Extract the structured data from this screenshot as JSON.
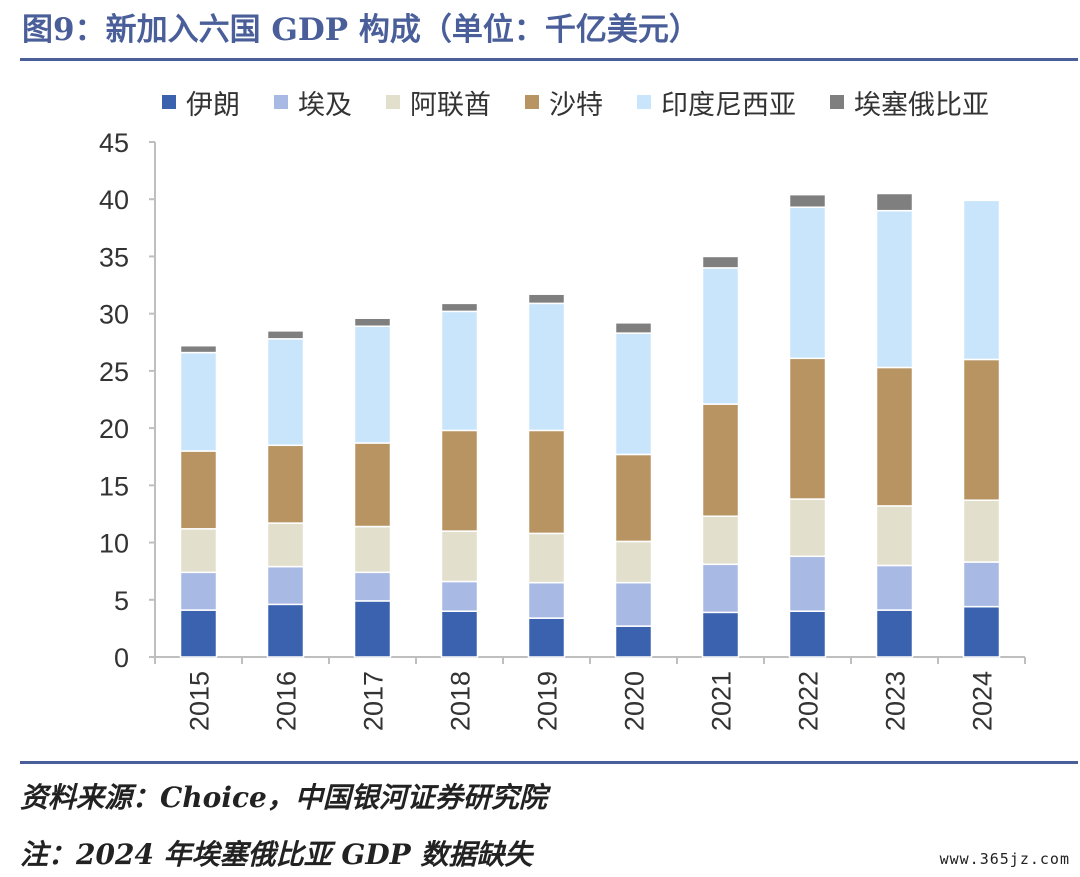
{
  "title": "图9：新加入六国 GDP 构成（单位：千亿美元）",
  "source": "资料来源：Choice，中国银河证券研究院",
  "note": "注：2024 年埃塞俄比亚 GDP 数据缺失",
  "watermark": "www.365jz.com",
  "colors": {
    "伊朗": "#3a62ae",
    "埃及": "#a8b9e3",
    "阿联酋": "#e2dfcd",
    "沙特": "#b89462",
    "印度尼西亚": "#c8e5fb",
    "埃塞俄比亚": "#7f7f7f"
  },
  "chart_data": {
    "type": "bar",
    "stacked": true,
    "categories": [
      "2015",
      "2016",
      "2017",
      "2018",
      "2019",
      "2020",
      "2021",
      "2022",
      "2023",
      "2024"
    ],
    "series": [
      {
        "name": "伊朗",
        "color": "#3a62ae",
        "values": [
          4.1,
          4.6,
          4.9,
          4.0,
          3.4,
          2.7,
          3.9,
          4.0,
          4.1,
          4.4
        ]
      },
      {
        "name": "埃及",
        "color": "#a8b9e3",
        "values": [
          3.3,
          3.3,
          2.5,
          2.6,
          3.1,
          3.8,
          4.2,
          4.8,
          3.9,
          3.9
        ]
      },
      {
        "name": "阿联酋",
        "color": "#e2dfcd",
        "values": [
          3.8,
          3.8,
          4.0,
          4.4,
          4.3,
          3.6,
          4.2,
          5.0,
          5.2,
          5.4
        ]
      },
      {
        "name": "沙特",
        "color": "#b89462",
        "values": [
          6.8,
          6.8,
          7.3,
          8.8,
          9.0,
          7.6,
          9.8,
          12.3,
          12.1,
          12.3
        ]
      },
      {
        "name": "印度尼西亚",
        "color": "#c8e5fb",
        "values": [
          8.6,
          9.3,
          10.2,
          10.4,
          11.1,
          10.6,
          11.9,
          13.2,
          13.7,
          13.9
        ]
      },
      {
        "name": "埃塞俄比亚",
        "color": "#7f7f7f",
        "values": [
          0.6,
          0.7,
          0.7,
          0.7,
          0.8,
          0.9,
          1.0,
          1.1,
          1.5,
          0
        ]
      }
    ],
    "yticks": [
      "0",
      "5",
      "10",
      "15",
      "20",
      "25",
      "30",
      "35",
      "40",
      "45"
    ],
    "ylim": [
      0,
      45
    ],
    "legend_position": "top",
    "grid": false
  }
}
